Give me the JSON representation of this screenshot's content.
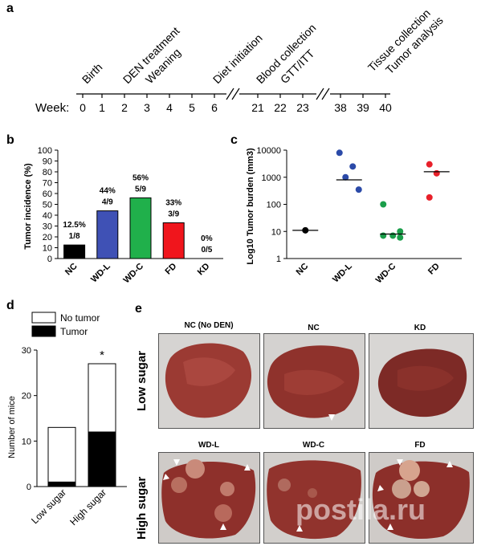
{
  "panels": {
    "a": "a",
    "b": "b",
    "c": "c",
    "d": "d",
    "e": "e"
  },
  "timeline": {
    "week_label": "Week:",
    "ticks": [
      "0",
      "1",
      "2",
      "3",
      "4",
      "5",
      "6",
      "21",
      "22",
      "23",
      "38",
      "39",
      "40"
    ],
    "events": [
      "Birth",
      "DEN treatment",
      "Weaning",
      "Diet initiation",
      "Blood collection",
      "GTT/ITT",
      "Tissue collection",
      "Tumor analysis"
    ]
  },
  "chart_data": [
    {
      "type": "bar",
      "categories": [
        "NC",
        "WD-L",
        "WD-C",
        "FD",
        "KD"
      ],
      "values": [
        12.5,
        44,
        56,
        33,
        0
      ],
      "data_labels": [
        [
          "12.5%",
          "1/8"
        ],
        [
          "44%",
          "4/9"
        ],
        [
          "56%",
          "5/9"
        ],
        [
          "33%",
          "3/9"
        ],
        [
          "0%",
          "0/5"
        ]
      ],
      "colors": [
        "#000000",
        "#3f51b5",
        "#20b04b",
        "#f0151c",
        "#ffffff"
      ],
      "ylabel": "Tumor incidence (%)",
      "yticks": [
        "0",
        "10",
        "20",
        "30",
        "40",
        "50",
        "60",
        "70",
        "80",
        "90",
        "100"
      ],
      "ylim": [
        0,
        100
      ]
    },
    {
      "type": "scatter",
      "categories": [
        "NC",
        "WD-L",
        "WD-C",
        "FD"
      ],
      "points": [
        [
          11
        ],
        [
          8000,
          2500,
          1000,
          350
        ],
        [
          100,
          10,
          7,
          6,
          7
        ],
        [
          3000,
          1400,
          180
        ]
      ],
      "medians": [
        11,
        800,
        8,
        1600
      ],
      "colors": [
        "#000000",
        "#2b4aa8",
        "#1a9e4a",
        "#e8202a"
      ],
      "ylabel": "Log10 Tumor burden (mm3)",
      "yticks": [
        "1",
        "10",
        "100",
        "1000",
        "10000"
      ],
      "ylim": [
        1,
        10000
      ],
      "scale": "log"
    },
    {
      "type": "bar",
      "stacked": true,
      "categories": [
        "Low sugar",
        "High sugar"
      ],
      "series": [
        {
          "name": "Tumor",
          "values": [
            1,
            12
          ],
          "color": "#000000"
        },
        {
          "name": "No tumor",
          "values": [
            12,
            15
          ],
          "color": "#ffffff"
        }
      ],
      "ylabel": "Number of mice",
      "yticks": [
        "0",
        "10",
        "20",
        "30"
      ],
      "ylim": [
        0,
        30
      ],
      "annotation": "*"
    }
  ],
  "photos": {
    "row_labels": [
      "Low sugar",
      "High sugar"
    ],
    "titles": [
      "NC (No DEN)",
      "NC",
      "KD",
      "WD-L",
      "WD-C",
      "FD"
    ]
  },
  "watermark": "postila.ru"
}
